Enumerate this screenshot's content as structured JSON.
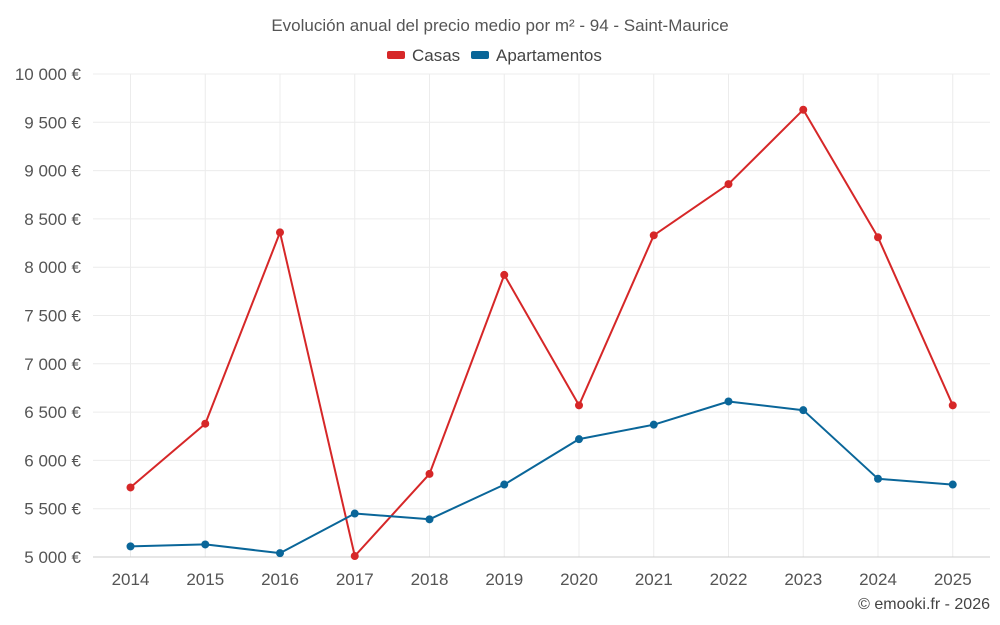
{
  "chart_data": {
    "type": "line",
    "title": "Evolución anual del precio medio por m² - 94 - Saint-Maurice",
    "categories": [
      "2014",
      "2015",
      "2016",
      "2017",
      "2018",
      "2019",
      "2020",
      "2021",
      "2022",
      "2023",
      "2024",
      "2025"
    ],
    "series": [
      {
        "name": "Casas",
        "color": "#d62728",
        "values": [
          5720,
          6380,
          8360,
          5010,
          5860,
          7920,
          6570,
          8330,
          8860,
          9630,
          8310,
          6570
        ]
      },
      {
        "name": "Apartamentos",
        "color": "#0a6699",
        "values": [
          5110,
          5130,
          5040,
          5450,
          5390,
          5750,
          6220,
          6370,
          6610,
          6520,
          5810,
          5750
        ]
      }
    ],
    "y_ticks": [
      5000,
      5500,
      6000,
      6500,
      7000,
      7500,
      8000,
      8500,
      9000,
      9500,
      10000
    ],
    "y_tick_labels": [
      "5 000 €",
      "5 500 €",
      "6 000 €",
      "6 500 €",
      "7 000 €",
      "7 500 €",
      "8 000 €",
      "8 500 €",
      "9 000 €",
      "9 500 €",
      "10 000 €"
    ],
    "ylim": [
      5000,
      10000
    ],
    "xlabel": "",
    "ylabel": "",
    "legend_position": "top-center",
    "grid": true
  },
  "credit": "© emooki.fr - 2026"
}
